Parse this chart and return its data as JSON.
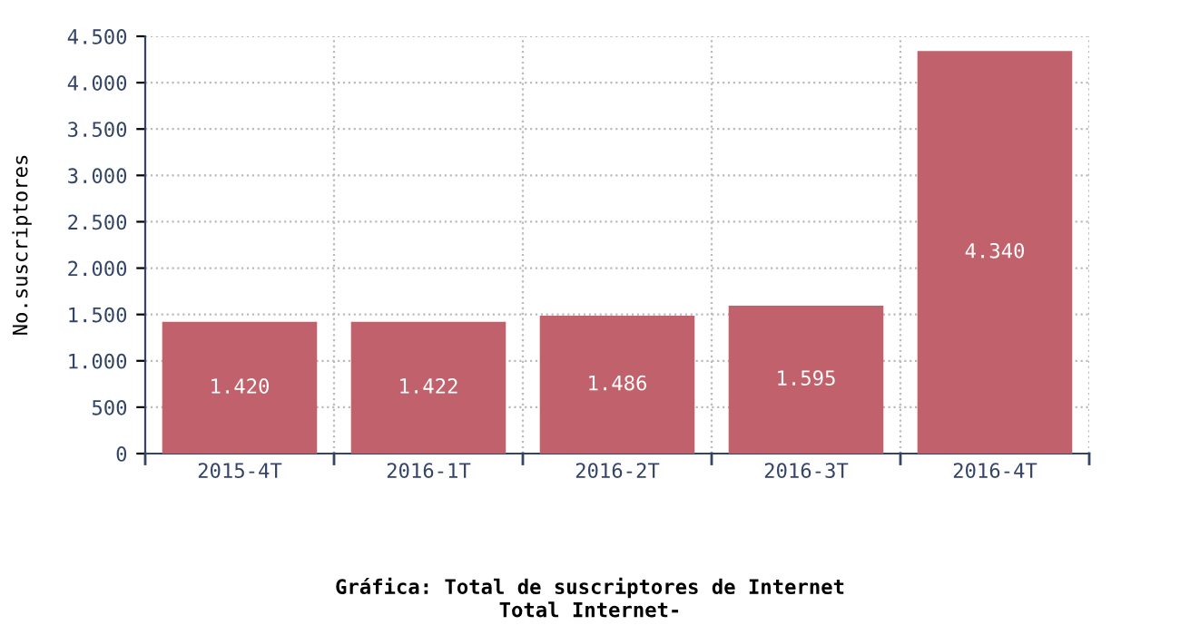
{
  "chart_data": {
    "type": "bar",
    "title": "Gráfica: Total de suscriptores de Internet",
    "subtitle": "Total Internet-",
    "ylabel": "No.suscriptores",
    "categories": [
      "2015-4T",
      "2016-1T",
      "2016-2T",
      "2016-3T",
      "2016-4T"
    ],
    "values": [
      1420,
      1422,
      1486,
      1595,
      4340
    ],
    "value_labels": [
      "1.420",
      "1.422",
      "1.486",
      "1.595",
      "4.340"
    ],
    "color": "#c0616b",
    "ylim": [
      0,
      4500
    ],
    "yticks": [
      {
        "value": 0,
        "label": "0"
      },
      {
        "value": 500,
        "label": "500"
      },
      {
        "value": 1000,
        "label": "1.000"
      },
      {
        "value": 1500,
        "label": "1.500"
      },
      {
        "value": 2000,
        "label": "2.000"
      },
      {
        "value": 2500,
        "label": "2.500"
      },
      {
        "value": 3000,
        "label": "3.000"
      },
      {
        "value": 3500,
        "label": "3.500"
      },
      {
        "value": 4000,
        "label": "4.000"
      },
      {
        "value": 4500,
        "label": "4.500"
      }
    ],
    "grid": true
  }
}
